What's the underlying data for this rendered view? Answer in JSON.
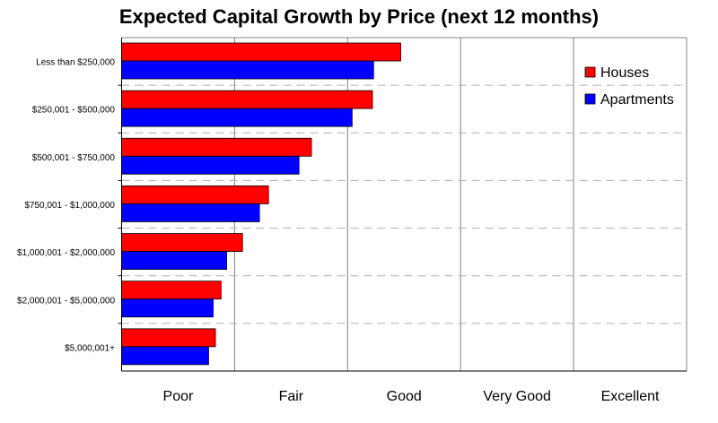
{
  "chart_data": {
    "type": "bar",
    "orientation": "horizontal",
    "title": "Expected Capital Growth by Price (next 12 months)",
    "categories": [
      "Less than $250,000",
      "$250,001 - $500,000",
      "$500,001 - $750,000",
      "$750,001 - $1,000,000",
      "$1,000,001 - $2,000,000",
      "$2,000,001 - $5,000,000",
      "$5,000,001+"
    ],
    "x_tick_labels": [
      "Poor",
      "Fair",
      "Good",
      "Very Good",
      "Excellent"
    ],
    "xlim": [
      0,
      5
    ],
    "series": [
      {
        "name": "Houses",
        "color": "#ff0000",
        "values": [
          2.47,
          2.22,
          1.68,
          1.3,
          1.07,
          0.88,
          0.83
        ]
      },
      {
        "name": "Apartments",
        "color": "#0000ff",
        "values": [
          2.23,
          2.04,
          1.57,
          1.22,
          0.93,
          0.81,
          0.77
        ]
      }
    ],
    "legend": "top-right",
    "grid": "vertical solid lines, horizontal dashed separators"
  }
}
